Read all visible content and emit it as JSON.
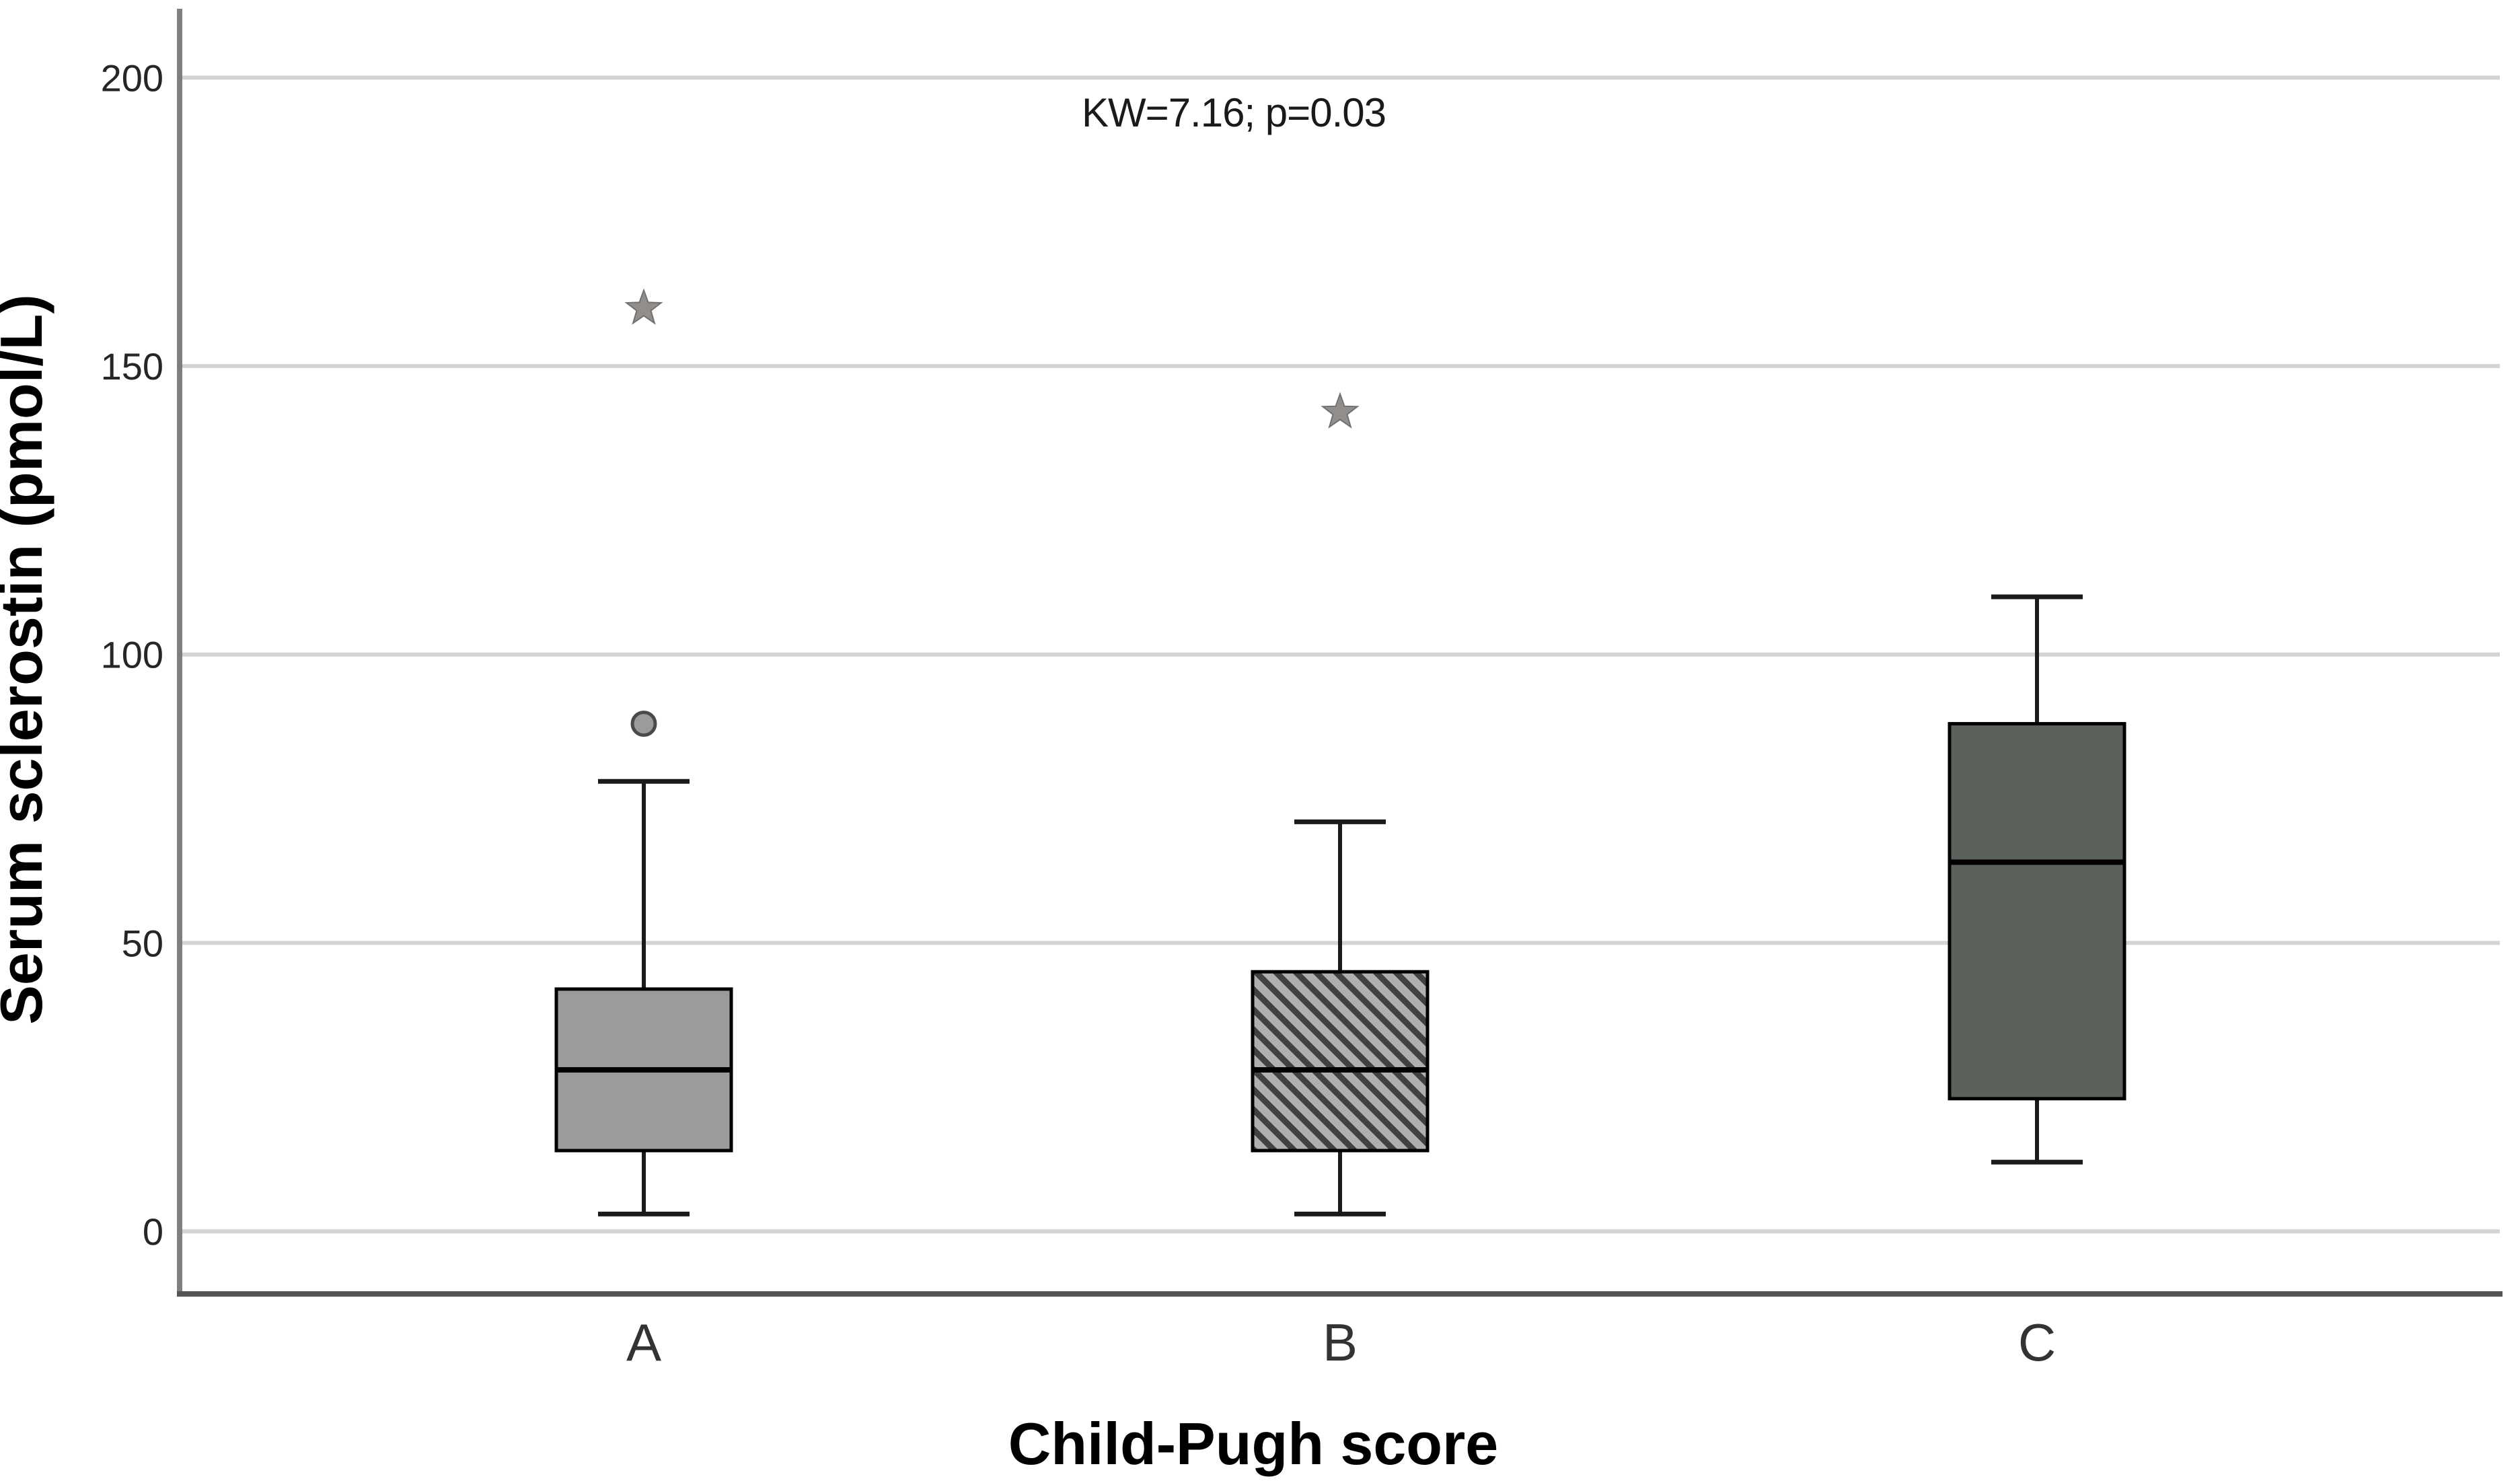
{
  "chart_data": {
    "type": "boxplot",
    "title": "",
    "annotation": "KW=7.16; p=0.03",
    "xlabel": "Child-Pugh score",
    "ylabel": "Serum sclerostin (pmol/L)",
    "categories": [
      "A",
      "B",
      "C"
    ],
    "yticks": [
      0,
      50,
      100,
      150,
      200
    ],
    "ylim": [
      -11,
      214
    ],
    "grid": "horizontal-only",
    "legend": "none",
    "series": [
      {
        "category": "A",
        "whisker_low": 3,
        "q1": 14,
        "median": 28,
        "q3": 42,
        "whisker_high": 78,
        "outliers_circle": [
          88
        ],
        "outliers_star": [
          160
        ],
        "fill": "#9b9b9b",
        "hatch": "none"
      },
      {
        "category": "B",
        "whisker_low": 3,
        "q1": 14,
        "median": 28,
        "q3": 45,
        "whisker_high": 71,
        "outliers_circle": [],
        "outliers_star": [
          142
        ],
        "fill": "#b1afad",
        "hatch": "diagonal-down",
        "hatch_color": "#414141"
      },
      {
        "category": "C",
        "whisker_low": 12,
        "q1": 23,
        "median": 64,
        "q3": 88,
        "whisker_high": 110,
        "outliers_circle": [],
        "outliers_star": [],
        "fill": "#5a625b",
        "hatch": "none"
      }
    ],
    "colors": {
      "gridline": "#d4d4d4",
      "y_axis_line": "#7f7f7f",
      "x_axis_line": "#545454",
      "box_border": "#000000",
      "median_line": "#000000",
      "whisker": "#1a1a1a",
      "outlier_marker": "#928e8c",
      "tick_text": "#262626"
    }
  }
}
